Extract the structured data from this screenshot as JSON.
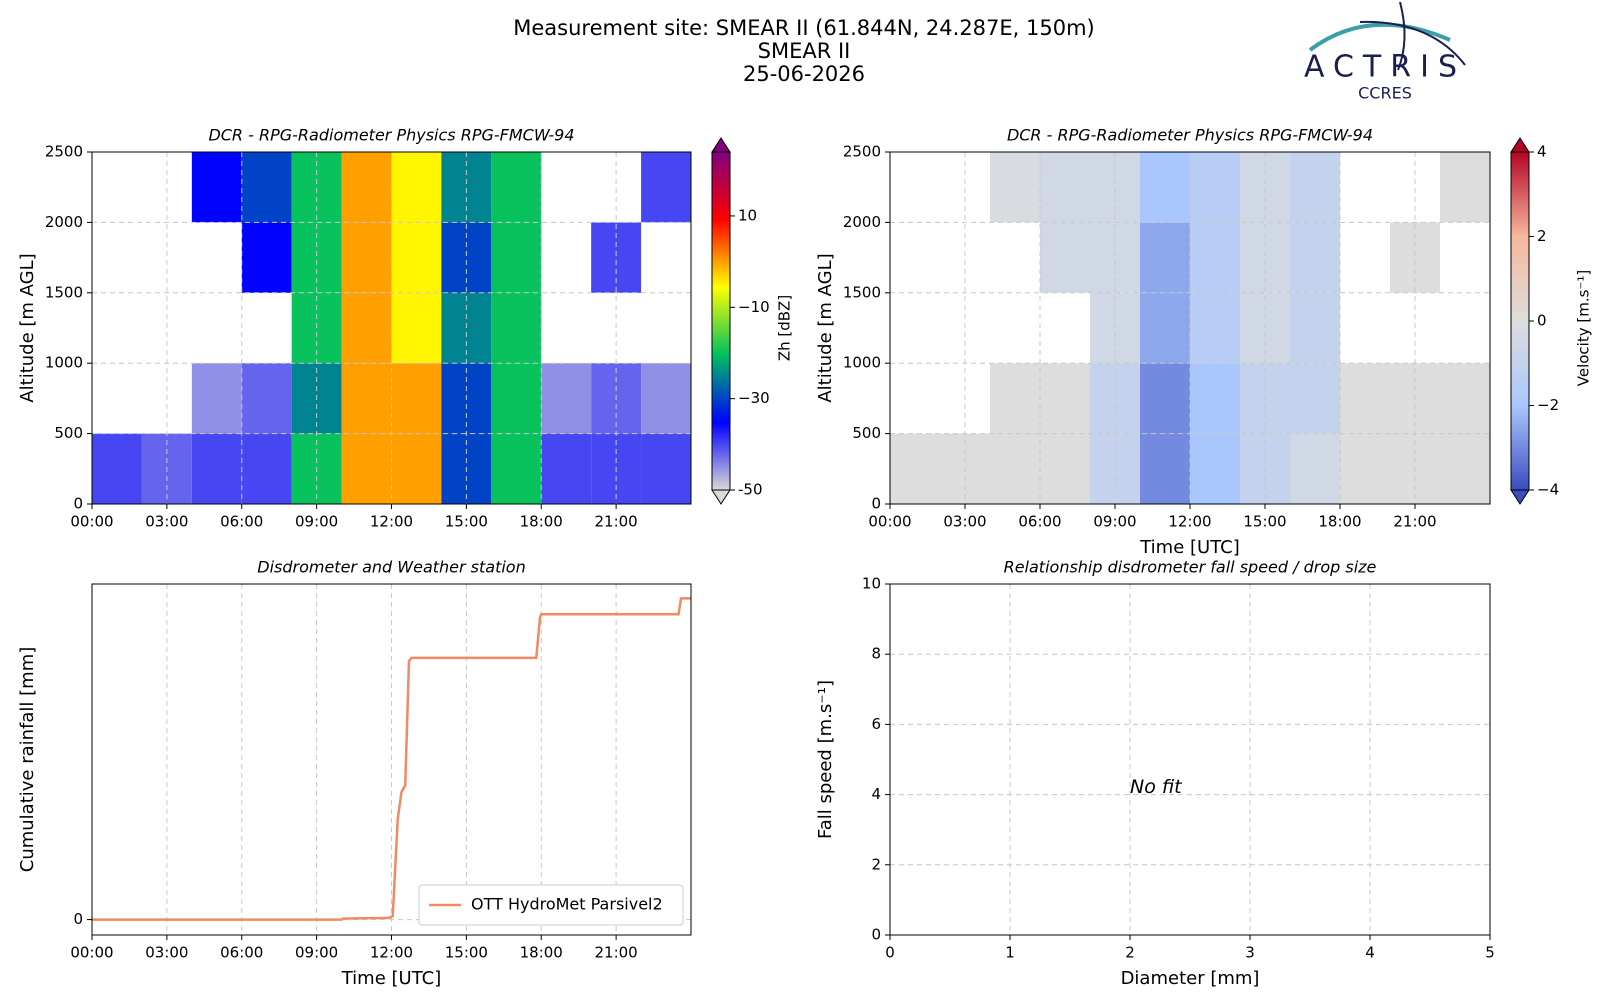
{
  "header": {
    "lines": [
      "Measurement site: SMEAR II (61.844N, 24.287E, 150m)",
      "SMEAR II",
      "25-06-2026"
    ]
  },
  "logo": {
    "name": "ACTRIS",
    "sub": "CCRES"
  },
  "chart_data": [
    {
      "type": "heatmap",
      "title": "DCR - RPG-Radiometer Physics RPG-FMCW-94",
      "ylabel": "Altitude [m AGL]",
      "xlim": [
        0,
        24
      ],
      "ylim": [
        0,
        2500
      ],
      "xticks": [
        {
          "value": 0,
          "label": "00:00"
        },
        {
          "value": 3,
          "label": "03:00"
        },
        {
          "value": 6,
          "label": "06:00"
        },
        {
          "value": 9,
          "label": "09:00"
        },
        {
          "value": 12,
          "label": "12:00"
        },
        {
          "value": 15,
          "label": "15:00"
        },
        {
          "value": 18,
          "label": "18:00"
        },
        {
          "value": 21,
          "label": "21:00"
        }
      ],
      "yticks": [
        0,
        500,
        1000,
        1500,
        2000,
        2500
      ],
      "grid": true,
      "xbins": [
        0,
        2,
        4,
        6,
        8,
        10,
        12,
        14,
        16,
        18,
        20,
        22,
        24
      ],
      "ybins": [
        0,
        500,
        1000,
        1500,
        2000,
        2500
      ],
      "values": [
        [
          -40,
          -42,
          -40,
          -40,
          -20,
          0,
          0,
          -30,
          -20,
          -40,
          -40,
          -40
        ],
        [
          null,
          null,
          -45,
          -42,
          -25,
          0,
          0,
          -30,
          -20,
          -45,
          -42,
          -45
        ],
        [
          null,
          null,
          null,
          null,
          -20,
          0,
          -5,
          -25,
          -20,
          null,
          null,
          null
        ],
        [
          null,
          null,
          null,
          -35,
          -20,
          0,
          -5,
          -30,
          -20,
          null,
          -40,
          null
        ],
        [
          null,
          null,
          -35,
          -30,
          -20,
          0,
          -5,
          -25,
          -20,
          null,
          null,
          -40
        ]
      ],
      "clim": [
        -50,
        24
      ],
      "cticks": [
        -50,
        {
          "value": -30,
          "label": "−30"
        },
        {
          "value": -10,
          "label": "−10"
        },
        10
      ],
      "clabel": "Zh [dBZ]",
      "colormap": [
        "#d9d9d9",
        "#0000ff",
        "#00c060",
        "#ffff00",
        "#ff0000",
        "#800080"
      ]
    },
    {
      "type": "heatmap",
      "title": "DCR - RPG-Radiometer Physics RPG-FMCW-94",
      "ylabel": "Altitude [m AGL]",
      "xlabel": "Time [UTC]",
      "xlim": [
        0,
        24
      ],
      "ylim": [
        0,
        2500
      ],
      "xticks": [
        {
          "value": 0,
          "label": "00:00"
        },
        {
          "value": 3,
          "label": "03:00"
        },
        {
          "value": 6,
          "label": "06:00"
        },
        {
          "value": 9,
          "label": "09:00"
        },
        {
          "value": 12,
          "label": "12:00"
        },
        {
          "value": 15,
          "label": "15:00"
        },
        {
          "value": 18,
          "label": "18:00"
        },
        {
          "value": 21,
          "label": "21:00"
        }
      ],
      "yticks": [
        0,
        500,
        1000,
        1500,
        2000,
        2500
      ],
      "grid": true,
      "xbins": [
        0,
        2,
        4,
        6,
        8,
        10,
        12,
        14,
        16,
        18,
        20,
        22,
        24
      ],
      "ybins": [
        0,
        500,
        1000,
        1500,
        2000,
        2500
      ],
      "values": [
        [
          0,
          0,
          0,
          0,
          -1,
          -3,
          -2,
          -1,
          -0.5,
          0,
          0,
          0
        ],
        [
          null,
          null,
          0,
          0,
          -1,
          -3,
          -2,
          -1,
          -1,
          0,
          0,
          0
        ],
        [
          null,
          null,
          null,
          null,
          -0.5,
          -2.5,
          -1.5,
          -0.5,
          -1,
          null,
          null,
          null
        ],
        [
          null,
          null,
          null,
          -0.5,
          -0.5,
          -2.5,
          -1.5,
          -0.5,
          -1,
          null,
          0,
          null
        ],
        [
          null,
          null,
          -0.2,
          -0.5,
          -0.5,
          -2,
          -1.5,
          -0.5,
          -1,
          null,
          null,
          0
        ]
      ],
      "clim": [
        -4,
        4
      ],
      "cticks": [
        {
          "value": -4,
          "label": "−4"
        },
        {
          "value": -2,
          "label": "−2"
        },
        0,
        2,
        4
      ],
      "clabel": "Velocity [m.s⁻¹]",
      "colormap": [
        "#3b4cc0",
        "#aac7fd",
        "#dddddd",
        "#f7b89c",
        "#b40426"
      ]
    },
    {
      "type": "line",
      "title": "Disdrometer and Weather station",
      "ylabel": "Cumulative rainfall [mm]",
      "xlabel": "Time [UTC]",
      "xlim": [
        0,
        24
      ],
      "ylim": [
        -0.046,
        1.0
      ],
      "xticks": [
        {
          "value": 0,
          "label": "00:00"
        },
        {
          "value": 3,
          "label": "03:00"
        },
        {
          "value": 6,
          "label": "06:00"
        },
        {
          "value": 9,
          "label": "09:00"
        },
        {
          "value": 12,
          "label": "12:00"
        },
        {
          "value": 15,
          "label": "15:00"
        },
        {
          "value": 18,
          "label": "18:00"
        },
        {
          "value": 21,
          "label": "21:00"
        }
      ],
      "yticks": [
        0
      ],
      "grid": true,
      "legend": "lower right",
      "x": [
        0,
        10,
        10.05,
        11.9,
        12.05,
        12.25,
        12.4,
        12.55,
        12.7,
        12.8,
        17.8,
        17.95,
        18,
        23.5,
        23.6,
        24
      ],
      "series": [
        {
          "name": "OTT HydroMet Parsivel2",
          "color": "#ef8a62",
          "values": [
            0,
            0,
            0.003,
            0.005,
            0.01,
            0.3,
            0.38,
            0.4,
            0.77,
            0.78,
            0.78,
            0.9,
            0.91,
            0.91,
            0.957,
            0.957
          ]
        }
      ]
    },
    {
      "type": "scatter",
      "title": "Relationship disdrometer fall speed / drop size",
      "ylabel": "Fall speed [m.s⁻¹]",
      "xlabel": "Diameter [mm]",
      "xlim": [
        0,
        5
      ],
      "ylim": [
        0,
        10
      ],
      "xticks": [
        0,
        1,
        2,
        3,
        4,
        5
      ],
      "yticks": [
        0,
        2,
        4,
        6,
        8,
        10
      ],
      "grid": true,
      "annotation": "No fit"
    }
  ]
}
